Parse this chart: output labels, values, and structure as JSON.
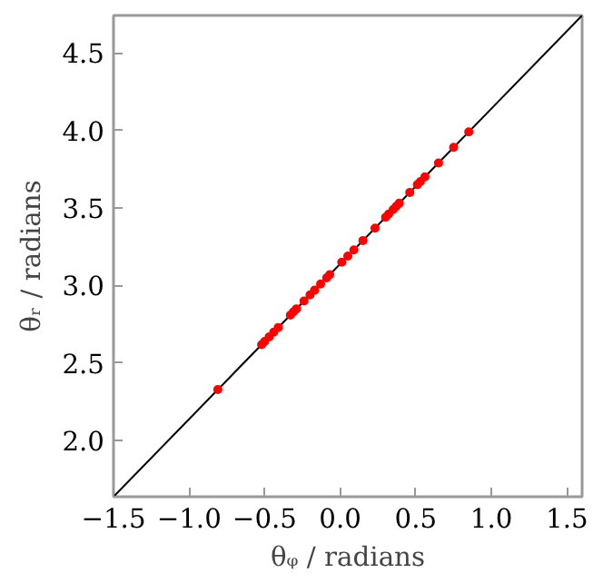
{
  "chart_data": {
    "type": "scatter",
    "xlabel": "θᵩ / radians",
    "ylabel": "θᵣ / radians",
    "xlim": [
      -1.5,
      1.6
    ],
    "ylim": [
      1.64,
      4.74
    ],
    "xticks": [
      {
        "value": -1.5,
        "label": "−1.5"
      },
      {
        "value": -1.0,
        "label": "−1.0"
      },
      {
        "value": -0.5,
        "label": "−0.5"
      },
      {
        "value": 0.0,
        "label": "0.0"
      },
      {
        "value": 0.5,
        "label": "0.5"
      },
      {
        "value": 1.0,
        "label": "1.0"
      },
      {
        "value": 1.5,
        "label": "1.5"
      }
    ],
    "yticks": [
      {
        "value": 2.0,
        "label": "2.0"
      },
      {
        "value": 2.5,
        "label": "2.5"
      },
      {
        "value": 3.0,
        "label": "3.0"
      },
      {
        "value": 3.5,
        "label": "3.5"
      },
      {
        "value": 4.0,
        "label": "4.0"
      },
      {
        "value": 4.5,
        "label": "4.5"
      }
    ],
    "grid": false,
    "series": [
      {
        "type": "line",
        "color": "#000000",
        "x": [
          -1.5,
          1.6
        ],
        "values": [
          1.64,
          4.74
        ]
      },
      {
        "marker": "circle",
        "color": "#ff0000",
        "x": [
          -0.81,
          -0.52,
          -0.5,
          -0.47,
          -0.44,
          -0.41,
          -0.33,
          -0.31,
          -0.29,
          -0.24,
          -0.2,
          -0.17,
          -0.13,
          -0.09,
          -0.07,
          0.01,
          0.05,
          0.09,
          0.15,
          0.23,
          0.3,
          0.32,
          0.35,
          0.37,
          0.39,
          0.46,
          0.51,
          0.53,
          0.56,
          0.65,
          0.75,
          0.85
        ],
        "values": [
          2.33,
          2.62,
          2.64,
          2.67,
          2.7,
          2.73,
          2.81,
          2.83,
          2.85,
          2.9,
          2.94,
          2.97,
          3.01,
          3.05,
          3.07,
          3.15,
          3.19,
          3.23,
          3.29,
          3.37,
          3.44,
          3.46,
          3.49,
          3.51,
          3.53,
          3.6,
          3.65,
          3.67,
          3.7,
          3.79,
          3.89,
          3.99
        ]
      }
    ]
  }
}
